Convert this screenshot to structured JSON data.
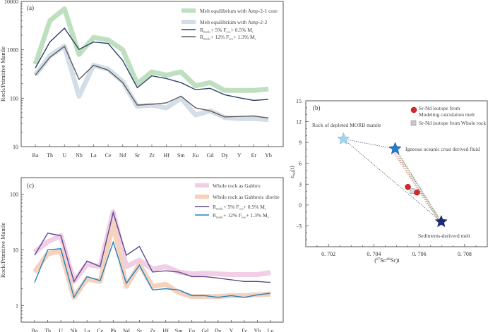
{
  "chart_data": [
    {
      "id": "a",
      "type": "line",
      "panel_label": "(a)",
      "ylabel": "Rock/Primitive Mantle",
      "xlabel": "",
      "yscale": "log",
      "ylim": [
        10,
        10000
      ],
      "yticks": [
        "10",
        "100",
        "1000",
        "10000"
      ],
      "categories": [
        "Ba",
        "Th",
        "U",
        "Nb",
        "La",
        "Ce",
        "Nd",
        "Sr",
        "Zr",
        "Hf",
        "Sm",
        "Eu",
        "Gd",
        "Dy",
        "Y",
        "Er",
        "Yb"
      ],
      "legend_position": "top-right",
      "series": [
        {
          "name": "Melt equilibrium with Amp-2-1 core",
          "kind": "band",
          "color": "#bfe0c0",
          "values": [
            500,
            4000,
            7000,
            800,
            1800,
            1600,
            1000,
            200,
            350,
            300,
            350,
            180,
            210,
            145,
            145,
            145,
            155
          ]
        },
        {
          "name": "Melt equilibrium with Amp-2-2",
          "kind": "band",
          "color": "#d3dfe8",
          "values": [
            300,
            750,
            1200,
            110,
            480,
            400,
            220,
            68,
            72,
            63,
            100,
            45,
            55,
            40,
            38,
            38,
            36
          ]
        },
        {
          "name": "R_mafic + 5% F_oce + 0.5% M_s",
          "kind": "line",
          "color": "#2e3f6e",
          "values": [
            420,
            1450,
            2800,
            1020,
            1450,
            1350,
            600,
            165,
            290,
            255,
            210,
            150,
            160,
            118,
            102,
            90,
            95
          ]
        },
        {
          "name": "R_mafic + 12% F_oce + 1.3% M_s",
          "kind": "line",
          "color": "#5f5a5a",
          "values": [
            300,
            700,
            1180,
            245,
            480,
            380,
            210,
            72,
            75,
            80,
            110,
            63,
            55,
            41,
            42,
            43,
            39
          ]
        }
      ]
    },
    {
      "id": "b",
      "type": "scatter",
      "panel_label": "(b)",
      "xlabel": "(87Sr/86Sr)i",
      "ylabel": "εNd(t)",
      "xlim": [
        0.701,
        0.709
      ],
      "ylim": [
        -6,
        15
      ],
      "xticks": [
        "0.702",
        "0.704",
        "0.706",
        "0.708"
      ],
      "yticks": [
        "-3",
        "0",
        "3",
        "6",
        "9",
        "12",
        "15"
      ],
      "legend_position": "top-right",
      "legend": [
        {
          "label_line1": "Sr-Nd isotope from",
          "label_line2": "Modeling calculation melt",
          "marker": "circle",
          "color": "#d9262b"
        },
        {
          "label_line1": "Sr-Nd isotope from Whole rock",
          "label_line2": "",
          "marker": "square",
          "color": "#c8c8c8"
        }
      ],
      "end_members": [
        {
          "name": "Rock of depleted MORB mantle",
          "x": 0.70266,
          "y": 9.5,
          "color": "#9fd3f0"
        },
        {
          "name": "Igneous oceanic crust derived fluid",
          "x": 0.70494,
          "y": 8.1,
          "color": "#1f7fd0"
        },
        {
          "name": "Sediments-deriverd melt",
          "x": 0.70697,
          "y": -2.4,
          "color": "#1c2a78"
        }
      ],
      "modeling_melt": [
        {
          "x": 0.7055,
          "y": 2.6
        },
        {
          "x": 0.7059,
          "y": 1.8
        }
      ],
      "whole_rock": [
        {
          "x": 0.7057,
          "y": 2.0
        }
      ]
    },
    {
      "id": "c",
      "type": "line",
      "panel_label": "(c)",
      "ylabel": "Rock/Primitive Mantle",
      "xlabel": "",
      "yscale": "log",
      "ylim": [
        0.5,
        200
      ],
      "yticks": [
        "1",
        "10",
        "100"
      ],
      "categories": [
        "Ba",
        "Th",
        "U",
        "Nb",
        "La",
        "Ce",
        "Pb",
        "Nd",
        "Sr",
        "Zr",
        "Hf",
        "Sm",
        "Eu",
        "Gd",
        "Dy",
        "Y",
        "Er",
        "Yb",
        "Lu"
      ],
      "legend_position": "top-right",
      "series": [
        {
          "name": "Whole rock as Gabbro",
          "kind": "band",
          "color": "#f1cde6",
          "values": [
            9,
            14,
            18,
            2.7,
            5.5,
            5,
            48,
            5,
            6.5,
            4.5,
            5,
            4,
            3.7,
            3.8,
            3.7,
            3.6,
            3.6,
            3.6,
            3.9
          ]
        },
        {
          "name": "Whole rock as Gabbroic diorite",
          "kind": "band",
          "color": "#f6d2bd",
          "values": [
            4,
            8.5,
            9.5,
            1.4,
            3,
            2.7,
            30,
            2.2,
            5.5,
            2.2,
            2.4,
            1.7,
            1.45,
            1.45,
            1.45,
            1.5,
            1.5,
            1.55,
            1.6
          ]
        },
        {
          "name": "R_mafic + 5% F_oce + 0.5% M_s",
          "kind": "line",
          "color": "#5b4a8c",
          "values": [
            8,
            20,
            18,
            2.7,
            6.3,
            5,
            47,
            8,
            11.5,
            4,
            4.2,
            4,
            3.3,
            3.3,
            3.1,
            2.9,
            2.7,
            2.7,
            2.6
          ]
        },
        {
          "name": "R_mafic + 12% F_oce + 1.3% M_s",
          "kind": "line",
          "color": "#1b84c4",
          "values": [
            2.6,
            10,
            10.5,
            1.4,
            3.3,
            2.8,
            13.8,
            2.5,
            5.3,
            1.9,
            2,
            1.9,
            1.5,
            1.5,
            1.4,
            1.5,
            1.4,
            1.55,
            1.65
          ]
        }
      ]
    }
  ],
  "legend_a": {
    "item1": "Melt equilibrium with Amp-2-1 core",
    "item2": "Melt equilibrium with Amp-2-2",
    "item3_main": "R",
    "item3_sub": "mafic",
    "item3_rest": "+ 5% F",
    "item3_sub2": "oce",
    "item3_rest2": "+ 0.5% M",
    "item3_sub3": "s",
    "item4_rest": "+ 12% F",
    "item4_rest2": "+ 1.3% M"
  },
  "legend_c": {
    "item1": "Whole rock as Gabbro",
    "item2": "Whole rock as Gabbroic diorite"
  },
  "axis_b": {
    "xlabel_prefix": "(",
    "xlabel_sup1": "87",
    "xlabel_mid": "Sr/",
    "xlabel_sup2": "86",
    "xlabel_end": "Sr)i",
    "ylabel_main": "ε",
    "ylabel_sub": "Nd",
    "ylabel_end": "(t)"
  }
}
